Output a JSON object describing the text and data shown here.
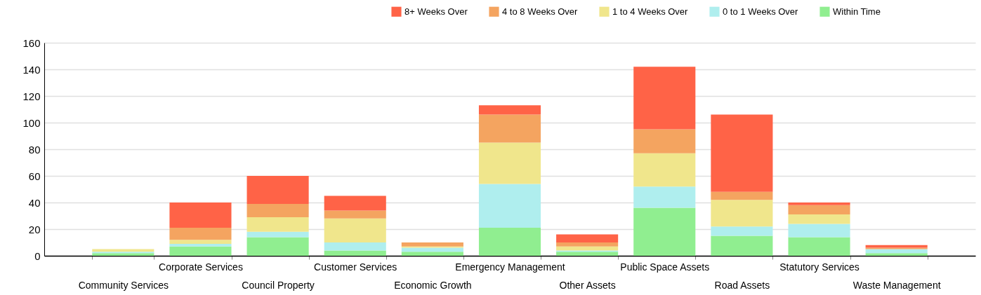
{
  "chart_data": {
    "type": "bar",
    "stacked": true,
    "categories": [
      "Community Services",
      "Corporate Services",
      "Council Property",
      "Customer Services",
      "Economic Growth",
      "Emergency Management",
      "Other Assets",
      "Public Space Assets",
      "Road Assets",
      "Statutory Services",
      "Waste Management"
    ],
    "series": [
      {
        "name": "Within Time",
        "color": "#90ee90",
        "values": [
          2,
          7,
          14,
          4,
          3,
          21,
          3,
          36,
          15,
          14,
          2
        ]
      },
      {
        "name": "0 to 1 Weeks Over",
        "color": "#afeeee",
        "values": [
          1,
          2,
          4,
          6,
          3,
          33,
          1,
          16,
          7,
          10,
          3
        ]
      },
      {
        "name": "1 to 4 Weeks Over",
        "color": "#f0e68c",
        "values": [
          2,
          3,
          11,
          18,
          1,
          31,
          3,
          25,
          20,
          7,
          0
        ]
      },
      {
        "name": "4 to 8 Weeks Over",
        "color": "#f4a460",
        "values": [
          0,
          9,
          10,
          6,
          3,
          21,
          3,
          18,
          6,
          7,
          1
        ]
      },
      {
        "name": "8+ Weeks Over",
        "color": "#ff6347",
        "values": [
          0,
          19,
          21,
          11,
          0,
          7,
          6,
          47,
          58,
          2,
          2
        ]
      }
    ],
    "ylim": [
      0,
      160
    ],
    "yticks": [
      0,
      20,
      40,
      60,
      80,
      100,
      120,
      140,
      160
    ],
    "grid": "y",
    "legend": "top right"
  }
}
